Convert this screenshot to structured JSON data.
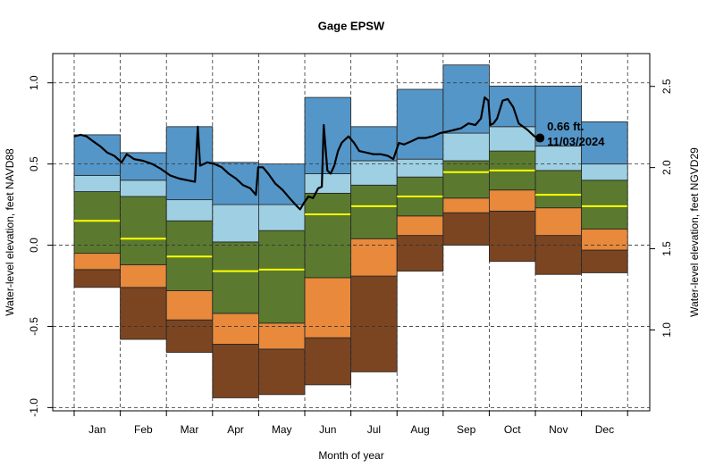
{
  "chart_data": {
    "type": "percentile-bands",
    "title": "Gage EPSW",
    "x_label": "Month of year",
    "y_label": "Water-level elevation, feet NAVD88",
    "y2_label": "Water-level elevation, feet NGVD29",
    "categories": [
      "Jan",
      "Feb",
      "Mar",
      "Apr",
      "May",
      "Jun",
      "Jul",
      "Aug",
      "Sep",
      "Oct",
      "Nov",
      "Dec"
    ],
    "xlim": [
      -0.465,
      12.48
    ],
    "xgrid": [
      0,
      1,
      2,
      3,
      4,
      5,
      6,
      7,
      8,
      9,
      10,
      11,
      12
    ],
    "ylim": [
      -1.02,
      1.18
    ],
    "yticks": [
      {
        "value": -1,
        "label": "-1.0"
      },
      -0.5,
      {
        "value": 0,
        "label": "0.0"
      },
      0.5,
      {
        "value": 1,
        "label": "1.0"
      }
    ],
    "y2lim": [
      0.502,
      2.702
    ],
    "y2ticks": [
      {
        "value": 1,
        "label": "1.0"
      },
      1.5,
      {
        "value": 2,
        "label": "2.0"
      },
      2.5
    ],
    "grid": true,
    "bounds": [
      {
        "values": [
          -0.26,
          -0.58,
          -0.66,
          -0.94,
          -0.92,
          -0.86,
          -0.78,
          -0.16,
          0.0,
          -0.1,
          -0.18,
          -0.17
        ]
      },
      {
        "values": [
          -0.15,
          -0.26,
          -0.46,
          -0.61,
          -0.64,
          -0.57,
          -0.19,
          0.06,
          0.2,
          0.21,
          0.06,
          -0.03
        ]
      },
      {
        "values": [
          -0.05,
          -0.12,
          -0.28,
          -0.42,
          -0.48,
          -0.2,
          0.04,
          0.18,
          0.29,
          0.34,
          0.23,
          0.1
        ]
      },
      {
        "values": [
          0.33,
          0.3,
          0.15,
          0.02,
          0.09,
          0.32,
          0.37,
          0.42,
          0.52,
          0.58,
          0.46,
          0.4
        ]
      },
      {
        "values": [
          0.43,
          0.4,
          0.28,
          0.25,
          0.25,
          0.44,
          0.52,
          0.53,
          0.69,
          0.73,
          0.61,
          0.5
        ]
      },
      {
        "values": [
          0.68,
          0.57,
          0.73,
          0.51,
          0.5,
          0.91,
          0.73,
          0.96,
          1.11,
          0.98,
          0.98,
          0.76
        ]
      }
    ],
    "band_colors": [
      "#7b4522",
      "#e8893c",
      "#5b7a2f",
      "#9ecfe2",
      "#5596c8"
    ],
    "median": {
      "color": "#ffff00",
      "values": [
        0.15,
        0.04,
        -0.07,
        -0.16,
        -0.15,
        0.19,
        0.24,
        0.3,
        0.45,
        0.46,
        0.31,
        0.24
      ]
    },
    "line": {
      "color": "#000000",
      "x": [
        0.0,
        0.14,
        0.27,
        0.41,
        0.56,
        0.72,
        0.87,
        1.03,
        1.14,
        1.3,
        1.49,
        1.69,
        1.88,
        2.08,
        2.28,
        2.62,
        2.68,
        2.73,
        2.89,
        3.04,
        3.2,
        3.35,
        3.51,
        3.66,
        3.82,
        3.94,
        3.99,
        4.09,
        4.21,
        4.36,
        4.52,
        4.67,
        4.83,
        4.9,
        4.98,
        5.08,
        5.18,
        5.29,
        5.37,
        5.41,
        5.49,
        5.56,
        5.64,
        5.72,
        5.8,
        5.87,
        5.95,
        6.07,
        6.18,
        6.34,
        6.49,
        6.65,
        6.8,
        6.92,
        7.04,
        7.15,
        7.31,
        7.46,
        7.62,
        7.77,
        7.93,
        8.09,
        8.24,
        8.39,
        8.55,
        8.7,
        8.82,
        8.9,
        8.98,
        9.02,
        9.09,
        9.17,
        9.29,
        9.4,
        9.52,
        9.64,
        9.83,
        9.98,
        10.1
      ],
      "values": [
        0.67,
        0.68,
        0.67,
        0.64,
        0.61,
        0.57,
        0.55,
        0.51,
        0.56,
        0.53,
        0.52,
        0.5,
        0.47,
        0.43,
        0.41,
        0.39,
        0.73,
        0.49,
        0.51,
        0.5,
        0.48,
        0.44,
        0.41,
        0.37,
        0.35,
        0.31,
        0.48,
        0.48,
        0.44,
        0.38,
        0.34,
        0.29,
        0.24,
        0.22,
        0.26,
        0.3,
        0.29,
        0.35,
        0.36,
        0.74,
        0.46,
        0.44,
        0.49,
        0.58,
        0.63,
        0.65,
        0.67,
        0.63,
        0.58,
        0.57,
        0.56,
        0.56,
        0.55,
        0.53,
        0.63,
        0.62,
        0.64,
        0.66,
        0.66,
        0.67,
        0.69,
        0.7,
        0.71,
        0.72,
        0.75,
        0.74,
        0.78,
        0.91,
        0.89,
        0.74,
        0.75,
        0.78,
        0.89,
        0.9,
        0.85,
        0.75,
        0.71,
        0.67,
        0.66
      ]
    },
    "latest": {
      "x": 10.1,
      "value": 0.66,
      "value_label": "0.66 ft.",
      "date": "11/03/2024"
    }
  }
}
